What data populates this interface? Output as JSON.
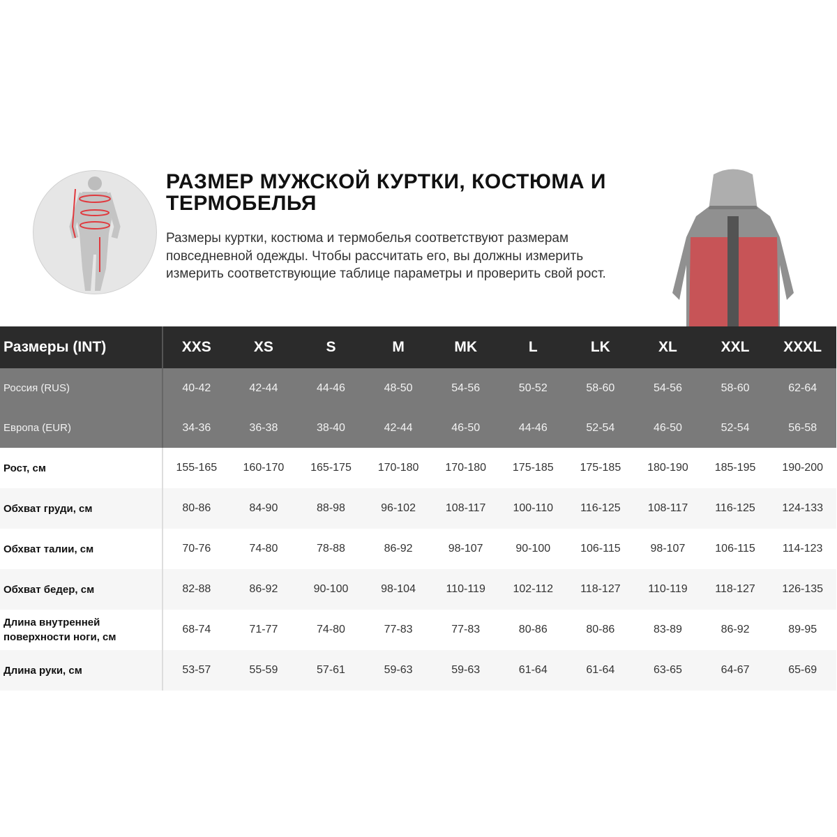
{
  "header": {
    "title": "Размер мужской куртки, костюма и термобелья",
    "description": "Размеры куртки, костюма и термобелья соответствуют размерам повседневной одежды. Чтобы рассчитать его, вы должны измерить измерить соответствующие таблице параметры и проверить свой рост."
  },
  "colors": {
    "header_bg": "#2b2b2b",
    "region_bg": "#7a7a7a",
    "accent": "#e0393e"
  },
  "table": {
    "header_label": "Размеры (INT)",
    "sizes": [
      "XXS",
      "XS",
      "S",
      "M",
      "MK",
      "L",
      "LK",
      "XL",
      "XXL",
      "XXXL"
    ],
    "region_rows": [
      {
        "label": "Россия (RUS)",
        "values": [
          "40-42",
          "42-44",
          "44-46",
          "48-50",
          "54-56",
          "50-52",
          "58-60",
          "54-56",
          "58-60",
          "62-64"
        ]
      },
      {
        "label": "Европа (EUR)",
        "values": [
          "34-36",
          "36-38",
          "38-40",
          "42-44",
          "46-50",
          "44-46",
          "52-54",
          "46-50",
          "52-54",
          "56-58"
        ]
      }
    ],
    "measure_rows": [
      {
        "label": "Рост, см",
        "values": [
          "155-165",
          "160-170",
          "165-175",
          "170-180",
          "170-180",
          "175-185",
          "175-185",
          "180-190",
          "185-195",
          "190-200"
        ]
      },
      {
        "label": "Обхват груди, см",
        "values": [
          "80-86",
          "84-90",
          "88-98",
          "96-102",
          "108-117",
          "100-110",
          "116-125",
          "108-117",
          "116-125",
          "124-133"
        ]
      },
      {
        "label": "Обхват талии, см",
        "values": [
          "70-76",
          "74-80",
          "78-88",
          "86-92",
          "98-107",
          "90-100",
          "106-115",
          "98-107",
          "106-115",
          "114-123"
        ]
      },
      {
        "label": "Обхват бедер, см",
        "values": [
          "82-88",
          "86-92",
          "90-100",
          "98-104",
          "110-119",
          "102-112",
          "118-127",
          "110-119",
          "118-127",
          "126-135"
        ]
      },
      {
        "label": "Длина внутренней поверхности ноги, см",
        "values": [
          "68-74",
          "71-77",
          "74-80",
          "77-83",
          "77-83",
          "80-86",
          "80-86",
          "83-89",
          "86-92",
          "89-95"
        ]
      },
      {
        "label": "Длина руки, см",
        "values": [
          "53-57",
          "55-59",
          "57-61",
          "59-63",
          "59-63",
          "61-64",
          "61-64",
          "63-65",
          "64-67",
          "65-69"
        ]
      }
    ]
  }
}
